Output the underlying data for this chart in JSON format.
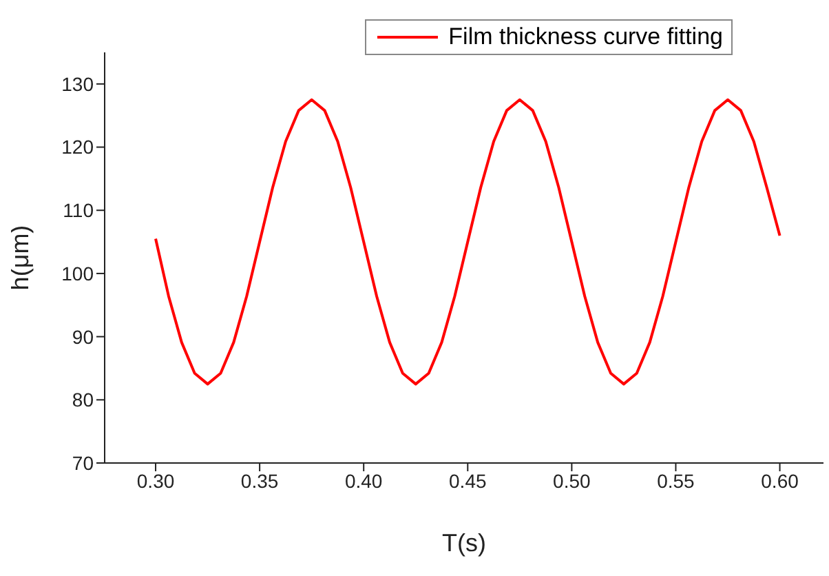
{
  "chart_data": {
    "type": "line",
    "xlabel": "T(s)",
    "ylabel": "h(μm)",
    "x": [
      0.3,
      0.30625,
      0.3125,
      0.31875,
      0.325,
      0.33125,
      0.3375,
      0.34375,
      0.35,
      0.35625,
      0.3625,
      0.36875,
      0.375,
      0.38125,
      0.3875,
      0.39375,
      0.4,
      0.40625,
      0.4125,
      0.41875,
      0.425,
      0.43125,
      0.4375,
      0.44375,
      0.45,
      0.45625,
      0.4625,
      0.46875,
      0.475,
      0.48125,
      0.4875,
      0.49375,
      0.5,
      0.50625,
      0.5125,
      0.51875,
      0.525,
      0.53125,
      0.5375,
      0.54375,
      0.55,
      0.55625,
      0.5625,
      0.56875,
      0.575,
      0.58125,
      0.5875,
      0.59375,
      0.6
    ],
    "series": [
      {
        "name": "Film thickness curve fitting",
        "color": "#ff0000",
        "values": [
          105.5,
          96.4,
          89.1,
          84.2,
          82.5,
          84.2,
          89.1,
          96.4,
          105,
          113.6,
          120.9,
          125.8,
          127.5,
          125.8,
          120.9,
          113.6,
          105,
          96.4,
          89.1,
          84.2,
          82.5,
          84.2,
          89.1,
          96.4,
          105,
          113.6,
          120.9,
          125.8,
          127.5,
          125.8,
          120.9,
          113.6,
          105,
          96.4,
          89.1,
          84.2,
          82.5,
          84.2,
          89.1,
          96.4,
          105,
          113.6,
          120.9,
          125.8,
          127.5,
          125.8,
          120.9,
          113.6,
          106
        ]
      }
    ],
    "xlim": [
      0.2755,
      0.621
    ],
    "ylim": [
      70,
      135
    ],
    "xticks": [
      {
        "value": 0.3,
        "label": "0.30"
      },
      {
        "value": 0.35,
        "label": "0.35"
      },
      {
        "value": 0.4,
        "label": "0.40"
      },
      {
        "value": 0.45,
        "label": "0.45"
      },
      {
        "value": 0.5,
        "label": "0.50"
      },
      {
        "value": 0.55,
        "label": "0.55"
      },
      {
        "value": 0.6,
        "label": "0.60"
      }
    ],
    "yticks": [
      70,
      80,
      90,
      100,
      110,
      120,
      130
    ],
    "grid": false,
    "legend": "top right",
    "marker": "none",
    "line_style": "solid"
  }
}
